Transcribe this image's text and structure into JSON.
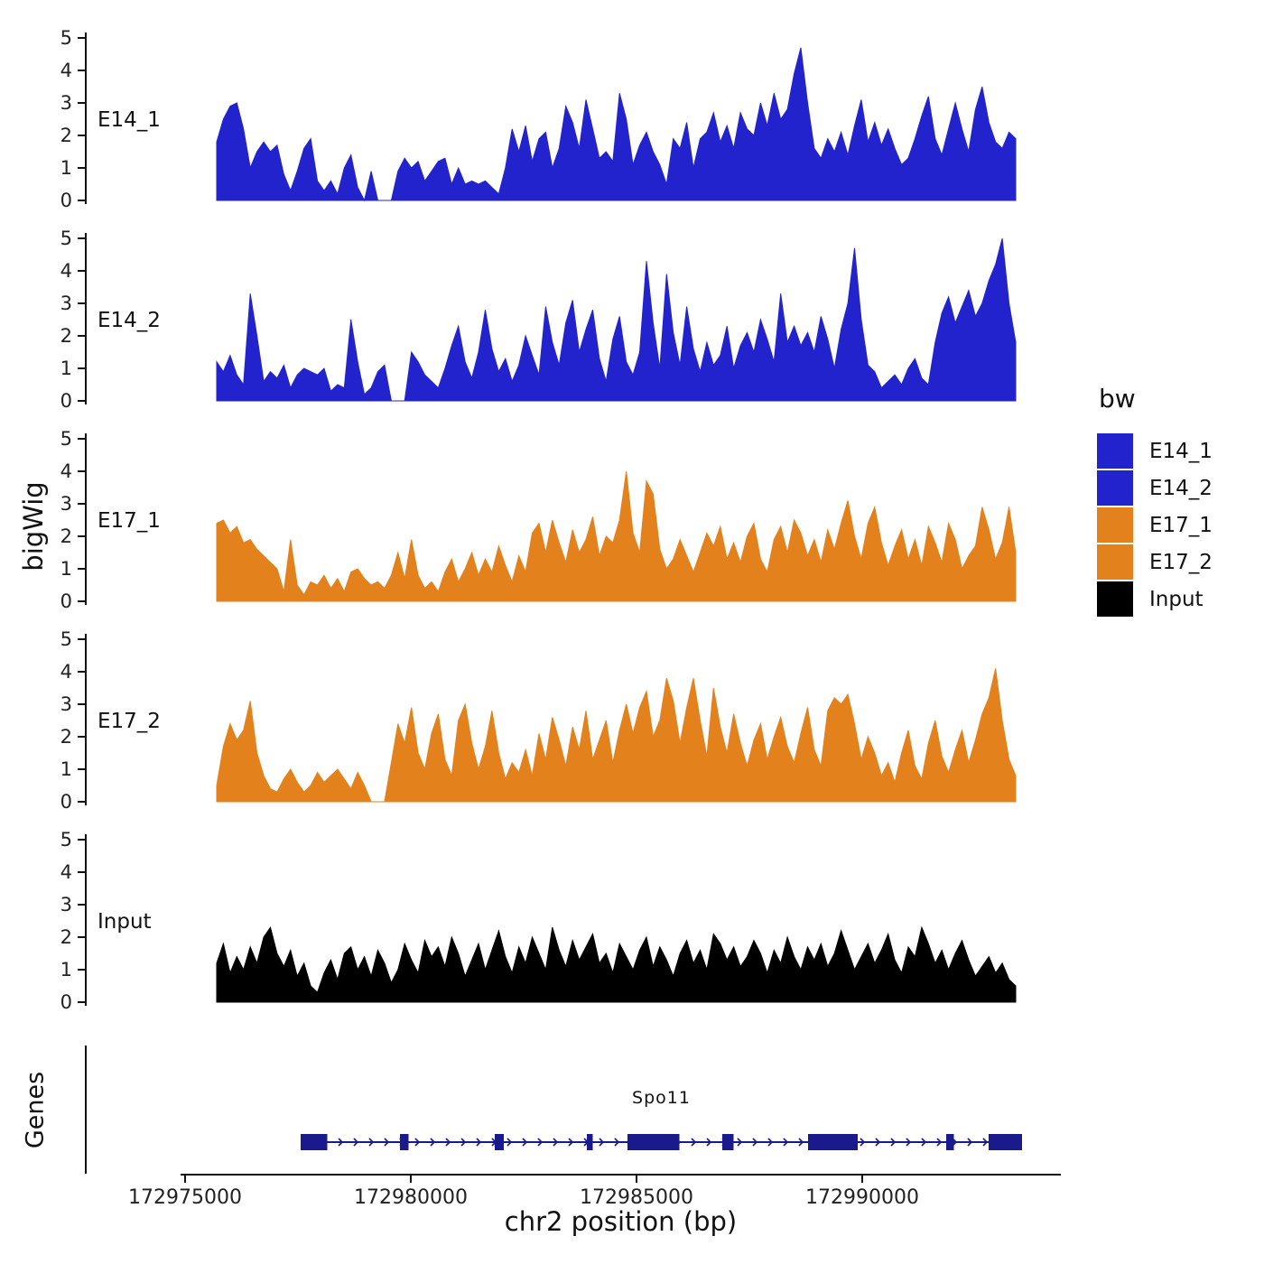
{
  "figure": {
    "y_axis_label": "bigWig",
    "genes_axis_label": "Genes",
    "x_axis_label": "chr2 position (bp)",
    "legend": {
      "title": "bw",
      "items": [
        {
          "label": "E14_1",
          "color": "#2323CE"
        },
        {
          "label": "E14_2",
          "color": "#2323CE"
        },
        {
          "label": "E17_1",
          "color": "#E3811D"
        },
        {
          "label": "E17_2",
          "color": "#E3811D"
        },
        {
          "label": "Input",
          "color": "#000000"
        }
      ]
    },
    "colors": {
      "blue": "#2323CE",
      "orange": "#E3811D",
      "black": "#000000",
      "gene": "#1A1A8C"
    }
  },
  "chart_data": {
    "type": "area",
    "title": "",
    "xlabel": "chr2 position (bp)",
    "ylabel": "bigWig",
    "x_start": 172975700,
    "x_end": 172993400,
    "ylim": [
      0,
      5
    ],
    "y_ticks": [
      "0",
      "1",
      "2",
      "3",
      "4",
      "5"
    ],
    "x_ticks": [
      {
        "pos": 172975000,
        "label": "172975000"
      },
      {
        "pos": 172980000,
        "label": "172980000"
      },
      {
        "pos": 172985000,
        "label": "172985000"
      },
      {
        "pos": 172990000,
        "label": "172990000"
      }
    ],
    "tracks": [
      {
        "name": "E14_1",
        "color": "#2323CE",
        "values": [
          1.8,
          2.5,
          2.9,
          3.0,
          2.2,
          1.0,
          1.5,
          1.8,
          1.5,
          1.7,
          0.8,
          0.3,
          0.9,
          1.6,
          1.9,
          0.6,
          0.3,
          0.6,
          0.2,
          1.0,
          1.4,
          0.4,
          0.0,
          0.9,
          0.0,
          0.0,
          0.0,
          0.9,
          1.3,
          1.0,
          1.2,
          0.6,
          0.9,
          1.2,
          1.3,
          0.5,
          1.0,
          0.5,
          0.6,
          0.5,
          0.6,
          0.4,
          0.2,
          1.0,
          2.2,
          1.5,
          2.3,
          1.2,
          1.9,
          2.1,
          1.0,
          1.6,
          2.9,
          2.4,
          1.6,
          3.1,
          2.2,
          1.3,
          1.5,
          1.2,
          3.3,
          2.5,
          1.1,
          1.7,
          2.1,
          1.5,
          1.1,
          0.5,
          1.9,
          1.6,
          2.4,
          1.0,
          1.9,
          2.1,
          2.7,
          1.8,
          2.3,
          1.6,
          2.7,
          2.2,
          2.0,
          3.0,
          2.3,
          3.3,
          2.5,
          2.8,
          3.9,
          4.7,
          3.0,
          1.6,
          1.3,
          1.9,
          1.5,
          2.1,
          1.4,
          2.3,
          3.1,
          1.8,
          2.4,
          1.7,
          2.2,
          1.6,
          1.1,
          1.3,
          1.9,
          2.6,
          3.2,
          1.9,
          1.4,
          2.2,
          3.0,
          2.2,
          1.5,
          2.8,
          3.5,
          2.4,
          1.8,
          1.6,
          2.1,
          1.9
        ]
      },
      {
        "name": "E14_2",
        "color": "#2323CE",
        "values": [
          1.2,
          0.9,
          1.4,
          0.8,
          0.5,
          3.3,
          2.0,
          0.6,
          0.9,
          0.7,
          1.1,
          0.4,
          0.8,
          1.0,
          0.9,
          0.8,
          1.0,
          0.3,
          0.5,
          0.4,
          2.5,
          1.2,
          0.2,
          0.4,
          0.9,
          1.1,
          0.0,
          0.0,
          0.0,
          1.5,
          1.2,
          0.8,
          0.6,
          0.4,
          1.0,
          1.7,
          2.3,
          1.2,
          0.7,
          1.5,
          2.8,
          1.6,
          0.9,
          1.3,
          0.6,
          1.1,
          2.0,
          1.4,
          0.8,
          2.9,
          1.8,
          1.1,
          2.4,
          3.1,
          1.5,
          2.2,
          2.8,
          1.3,
          0.6,
          1.9,
          2.6,
          1.2,
          0.8,
          1.5,
          4.3,
          2.4,
          1.0,
          3.9,
          2.1,
          1.1,
          2.9,
          1.6,
          0.9,
          1.8,
          1.1,
          1.4,
          2.3,
          1.0,
          1.7,
          2.1,
          1.5,
          2.5,
          1.9,
          1.2,
          3.3,
          1.8,
          2.3,
          1.7,
          2.1,
          1.5,
          2.6,
          1.9,
          1.0,
          2.2,
          3.0,
          4.7,
          2.5,
          1.1,
          0.9,
          0.4,
          0.6,
          0.8,
          0.5,
          1.0,
          1.3,
          0.7,
          0.5,
          1.8,
          2.7,
          3.2,
          2.4,
          2.9,
          3.4,
          2.6,
          3.0,
          3.7,
          4.2,
          5.0,
          3.0,
          1.8
        ]
      },
      {
        "name": "E17_1",
        "color": "#E3811D",
        "values": [
          2.4,
          2.5,
          2.1,
          2.3,
          1.8,
          1.9,
          1.6,
          1.4,
          1.2,
          1.0,
          0.3,
          1.9,
          0.5,
          0.2,
          0.6,
          0.5,
          0.8,
          0.4,
          0.7,
          0.3,
          0.9,
          1.0,
          0.7,
          0.5,
          0.6,
          0.4,
          0.8,
          1.5,
          0.7,
          1.9,
          0.8,
          0.4,
          0.6,
          0.3,
          0.9,
          1.3,
          0.6,
          1.0,
          1.5,
          0.8,
          1.3,
          0.9,
          1.7,
          1.1,
          0.6,
          1.4,
          0.9,
          2.1,
          2.4,
          1.5,
          2.5,
          1.8,
          1.2,
          2.2,
          1.5,
          1.9,
          2.6,
          1.4,
          2.0,
          1.8,
          2.5,
          4.0,
          2.1,
          1.5,
          3.7,
          3.3,
          1.6,
          1.0,
          1.3,
          1.9,
          1.4,
          0.9,
          1.5,
          2.1,
          1.7,
          2.3,
          1.3,
          1.8,
          1.2,
          2.0,
          2.4,
          1.3,
          0.9,
          1.9,
          2.3,
          1.5,
          2.5,
          2.1,
          1.4,
          1.9,
          1.2,
          2.2,
          1.6,
          2.4,
          3.1,
          2.0,
          1.3,
          2.4,
          2.9,
          1.8,
          1.1,
          1.7,
          2.2,
          1.3,
          1.9,
          1.1,
          2.3,
          1.8,
          1.2,
          2.4,
          1.9,
          1.0,
          1.4,
          1.7,
          2.9,
          2.2,
          1.3,
          1.8,
          2.9,
          1.5
        ]
      },
      {
        "name": "E17_2",
        "color": "#E3811D",
        "values": [
          0.5,
          1.7,
          2.4,
          1.9,
          2.2,
          3.1,
          1.5,
          0.8,
          0.4,
          0.3,
          0.7,
          1.0,
          0.6,
          0.3,
          0.5,
          0.9,
          0.6,
          0.8,
          1.0,
          0.7,
          0.4,
          0.9,
          0.5,
          0.0,
          0.0,
          0.0,
          1.2,
          2.4,
          1.8,
          2.9,
          1.5,
          1.0,
          2.1,
          2.7,
          1.3,
          0.8,
          2.5,
          3.0,
          1.8,
          1.0,
          1.7,
          2.8,
          1.5,
          0.7,
          1.2,
          0.9,
          1.6,
          0.8,
          2.1,
          1.3,
          2.6,
          1.9,
          1.1,
          2.3,
          1.6,
          2.8,
          1.3,
          1.9,
          2.5,
          1.2,
          2.2,
          3.0,
          2.1,
          2.9,
          3.4,
          2.0,
          2.5,
          3.8,
          3.1,
          1.8,
          2.9,
          3.8,
          2.5,
          1.4,
          3.5,
          2.3,
          1.5,
          2.7,
          1.8,
          1.1,
          1.9,
          2.4,
          1.3,
          2.0,
          2.6,
          1.7,
          1.2,
          2.1,
          2.9,
          1.6,
          1.1,
          2.8,
          3.2,
          3.0,
          3.3,
          2.4,
          1.3,
          2.0,
          1.5,
          0.8,
          1.2,
          0.6,
          1.5,
          2.2,
          1.1,
          0.7,
          1.8,
          2.5,
          1.4,
          0.9,
          1.6,
          2.2,
          1.2,
          1.9,
          2.7,
          3.2,
          4.1,
          2.5,
          1.3,
          0.8
        ]
      },
      {
        "name": "Input",
        "color": "#000000",
        "values": [
          1.2,
          1.8,
          0.9,
          1.4,
          1.0,
          1.7,
          1.2,
          2.0,
          2.3,
          1.5,
          1.1,
          1.6,
          0.8,
          1.2,
          0.5,
          0.3,
          0.9,
          1.3,
          0.7,
          1.5,
          1.7,
          1.0,
          1.4,
          0.8,
          1.6,
          1.2,
          0.6,
          1.0,
          1.8,
          1.3,
          0.9,
          1.9,
          1.4,
          1.7,
          1.1,
          2.0,
          1.5,
          0.8,
          1.3,
          1.8,
          1.0,
          1.6,
          2.2,
          1.4,
          0.9,
          1.7,
          1.2,
          2.0,
          1.5,
          1.0,
          2.3,
          1.6,
          1.1,
          1.9,
          1.3,
          1.7,
          2.1,
          1.2,
          1.5,
          0.9,
          1.8,
          1.4,
          1.0,
          1.6,
          2.0,
          1.1,
          1.7,
          1.3,
          0.8,
          1.5,
          1.9,
          1.2,
          1.6,
          1.0,
          2.1,
          1.8,
          1.3,
          1.7,
          1.1,
          1.4,
          1.9,
          1.5,
          0.9,
          1.6,
          1.2,
          2.0,
          1.4,
          1.0,
          1.7,
          1.3,
          1.8,
          1.1,
          1.5,
          2.2,
          1.6,
          1.0,
          1.4,
          1.8,
          1.2,
          1.6,
          2.1,
          1.3,
          0.9,
          1.7,
          1.4,
          2.3,
          1.8,
          1.2,
          1.6,
          1.0,
          1.5,
          1.9,
          1.3,
          0.8,
          1.1,
          1.4,
          0.9,
          1.2,
          0.7,
          0.5
        ]
      }
    ],
    "gene_track": {
      "label": "Genes",
      "gene": {
        "name": "Spo11",
        "strand": "+",
        "start": 172977560,
        "end": 172993540,
        "color": "#1A1A8C",
        "exons": [
          [
            172977560,
            172978150
          ],
          [
            172979760,
            172979950
          ],
          [
            172981860,
            172982060
          ],
          [
            172983900,
            172984030
          ],
          [
            172984800,
            172985950
          ],
          [
            172986900,
            172987150
          ],
          [
            172988800,
            172989900
          ],
          [
            172991860,
            172992030
          ],
          [
            172992800,
            172993540
          ]
        ]
      }
    }
  }
}
